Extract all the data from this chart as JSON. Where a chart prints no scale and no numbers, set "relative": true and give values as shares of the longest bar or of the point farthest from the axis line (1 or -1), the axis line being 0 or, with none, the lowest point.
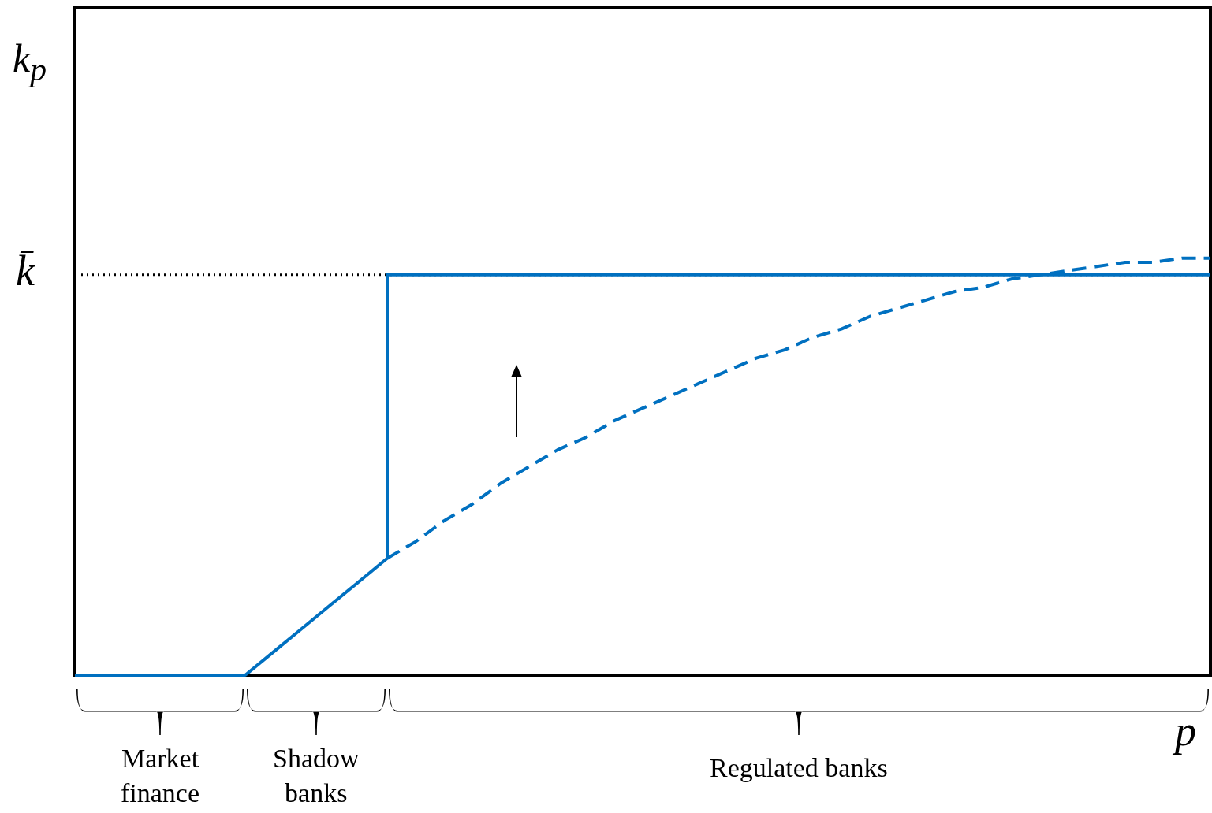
{
  "chart_data": {
    "type": "line",
    "relative": true,
    "xlabel": "p",
    "ylabel": "k$_{p}$",
    "legend": false,
    "categories": [
      null,
      null,
      null,
      null,
      null,
      null,
      null,
      null,
      null,
      null,
      null,
      null,
      null,
      null,
      null,
      null,
      null,
      null,
      null,
      null,
      null,
      null,
      null,
      null,
      null,
      null,
      null,
      null,
      null,
      null,
      null,
      null,
      null,
      null,
      null,
      null,
      null,
      null,
      null,
      null,
      null
    ],
    "series": [
      {
        "color": "#0070c0",
        "line_style": "solid",
        "values": [
          0,
          0,
          0,
          0,
          0,
          0,
          0,
          0.056,
          0.112,
          0.168,
          0.224,
          0.28,
          null,
          null,
          null,
          null,
          null,
          null,
          null,
          null,
          null,
          null,
          null,
          null,
          null,
          null,
          null,
          null,
          null,
          null,
          null,
          null,
          null,
          null,
          null,
          null,
          null,
          null,
          null,
          null,
          null
        ]
      },
      {
        "type": "step",
        "color": "#0070c0",
        "line_style": "solid",
        "values": [
          null,
          null,
          null,
          null,
          null,
          null,
          null,
          null,
          null,
          null,
          null,
          0.28,
          0.96,
          0.96,
          0.96,
          0.96,
          0.96,
          0.96,
          0.96,
          0.96,
          0.96,
          0.96,
          0.96,
          0.96,
          0.96,
          0.96,
          0.96,
          0.96,
          0.96,
          0.96,
          0.96,
          0.96,
          0.96,
          0.96,
          0.96,
          0.96,
          0.96,
          0.96,
          0.96,
          0.96,
          0.96
        ]
      },
      {
        "color": "#0070c0",
        "line_style": "dashed",
        "values": [
          null,
          null,
          null,
          null,
          null,
          null,
          null,
          null,
          null,
          null,
          null,
          0.28,
          0.32,
          0.37,
          0.41,
          0.46,
          0.5,
          0.54,
          0.57,
          0.61,
          0.64,
          0.67,
          0.7,
          0.73,
          0.76,
          0.78,
          0.81,
          0.83,
          0.86,
          0.88,
          0.9,
          0.92,
          0.93,
          0.95,
          0.96,
          0.97,
          0.98,
          0.99,
          0.99,
          1,
          1
        ]
      }
    ],
    "ref_lines": [
      {
        "axis": "y",
        "value": 0.96,
        "label": "k̄",
        "color": "#000000",
        "line_style": "dotted"
      }
    ],
    "annotations": [
      "Market\nfinance",
      "Shadow\nbanks",
      "Regulated banks"
    ]
  }
}
